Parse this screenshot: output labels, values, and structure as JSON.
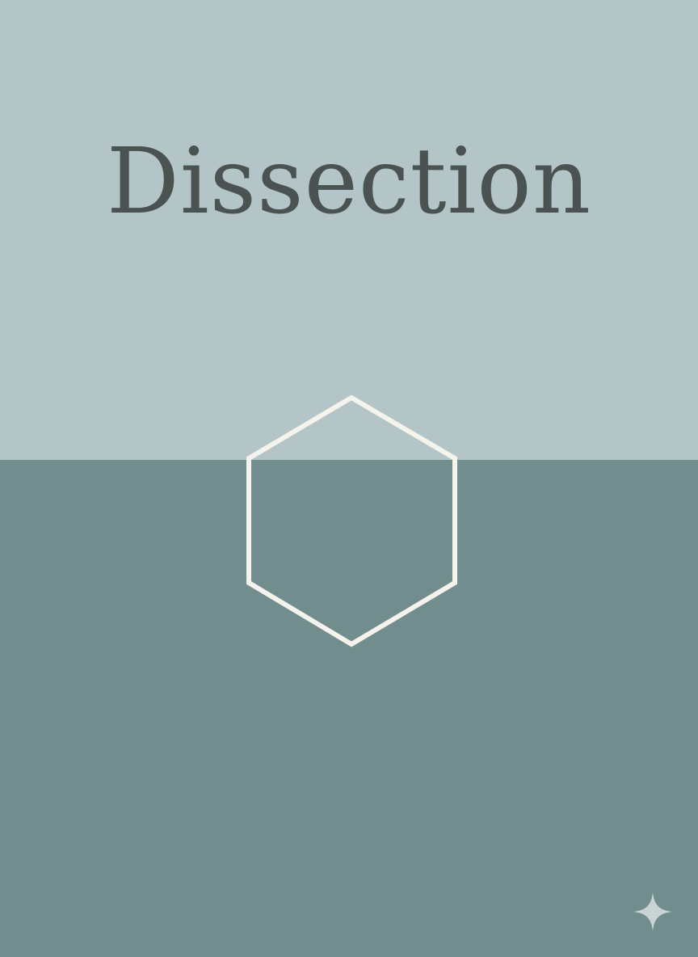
{
  "title": "Dissection",
  "colors": {
    "top_band": "#b3c5c6",
    "bottom_band": "#728d8e",
    "title_text": "#4a5352",
    "hexagon_stroke": "#f4f3ec",
    "sparkle": "#c9d3d3"
  },
  "icons": {
    "shape": "hexagon-outline",
    "corner_mark": "sparkle-icon"
  }
}
